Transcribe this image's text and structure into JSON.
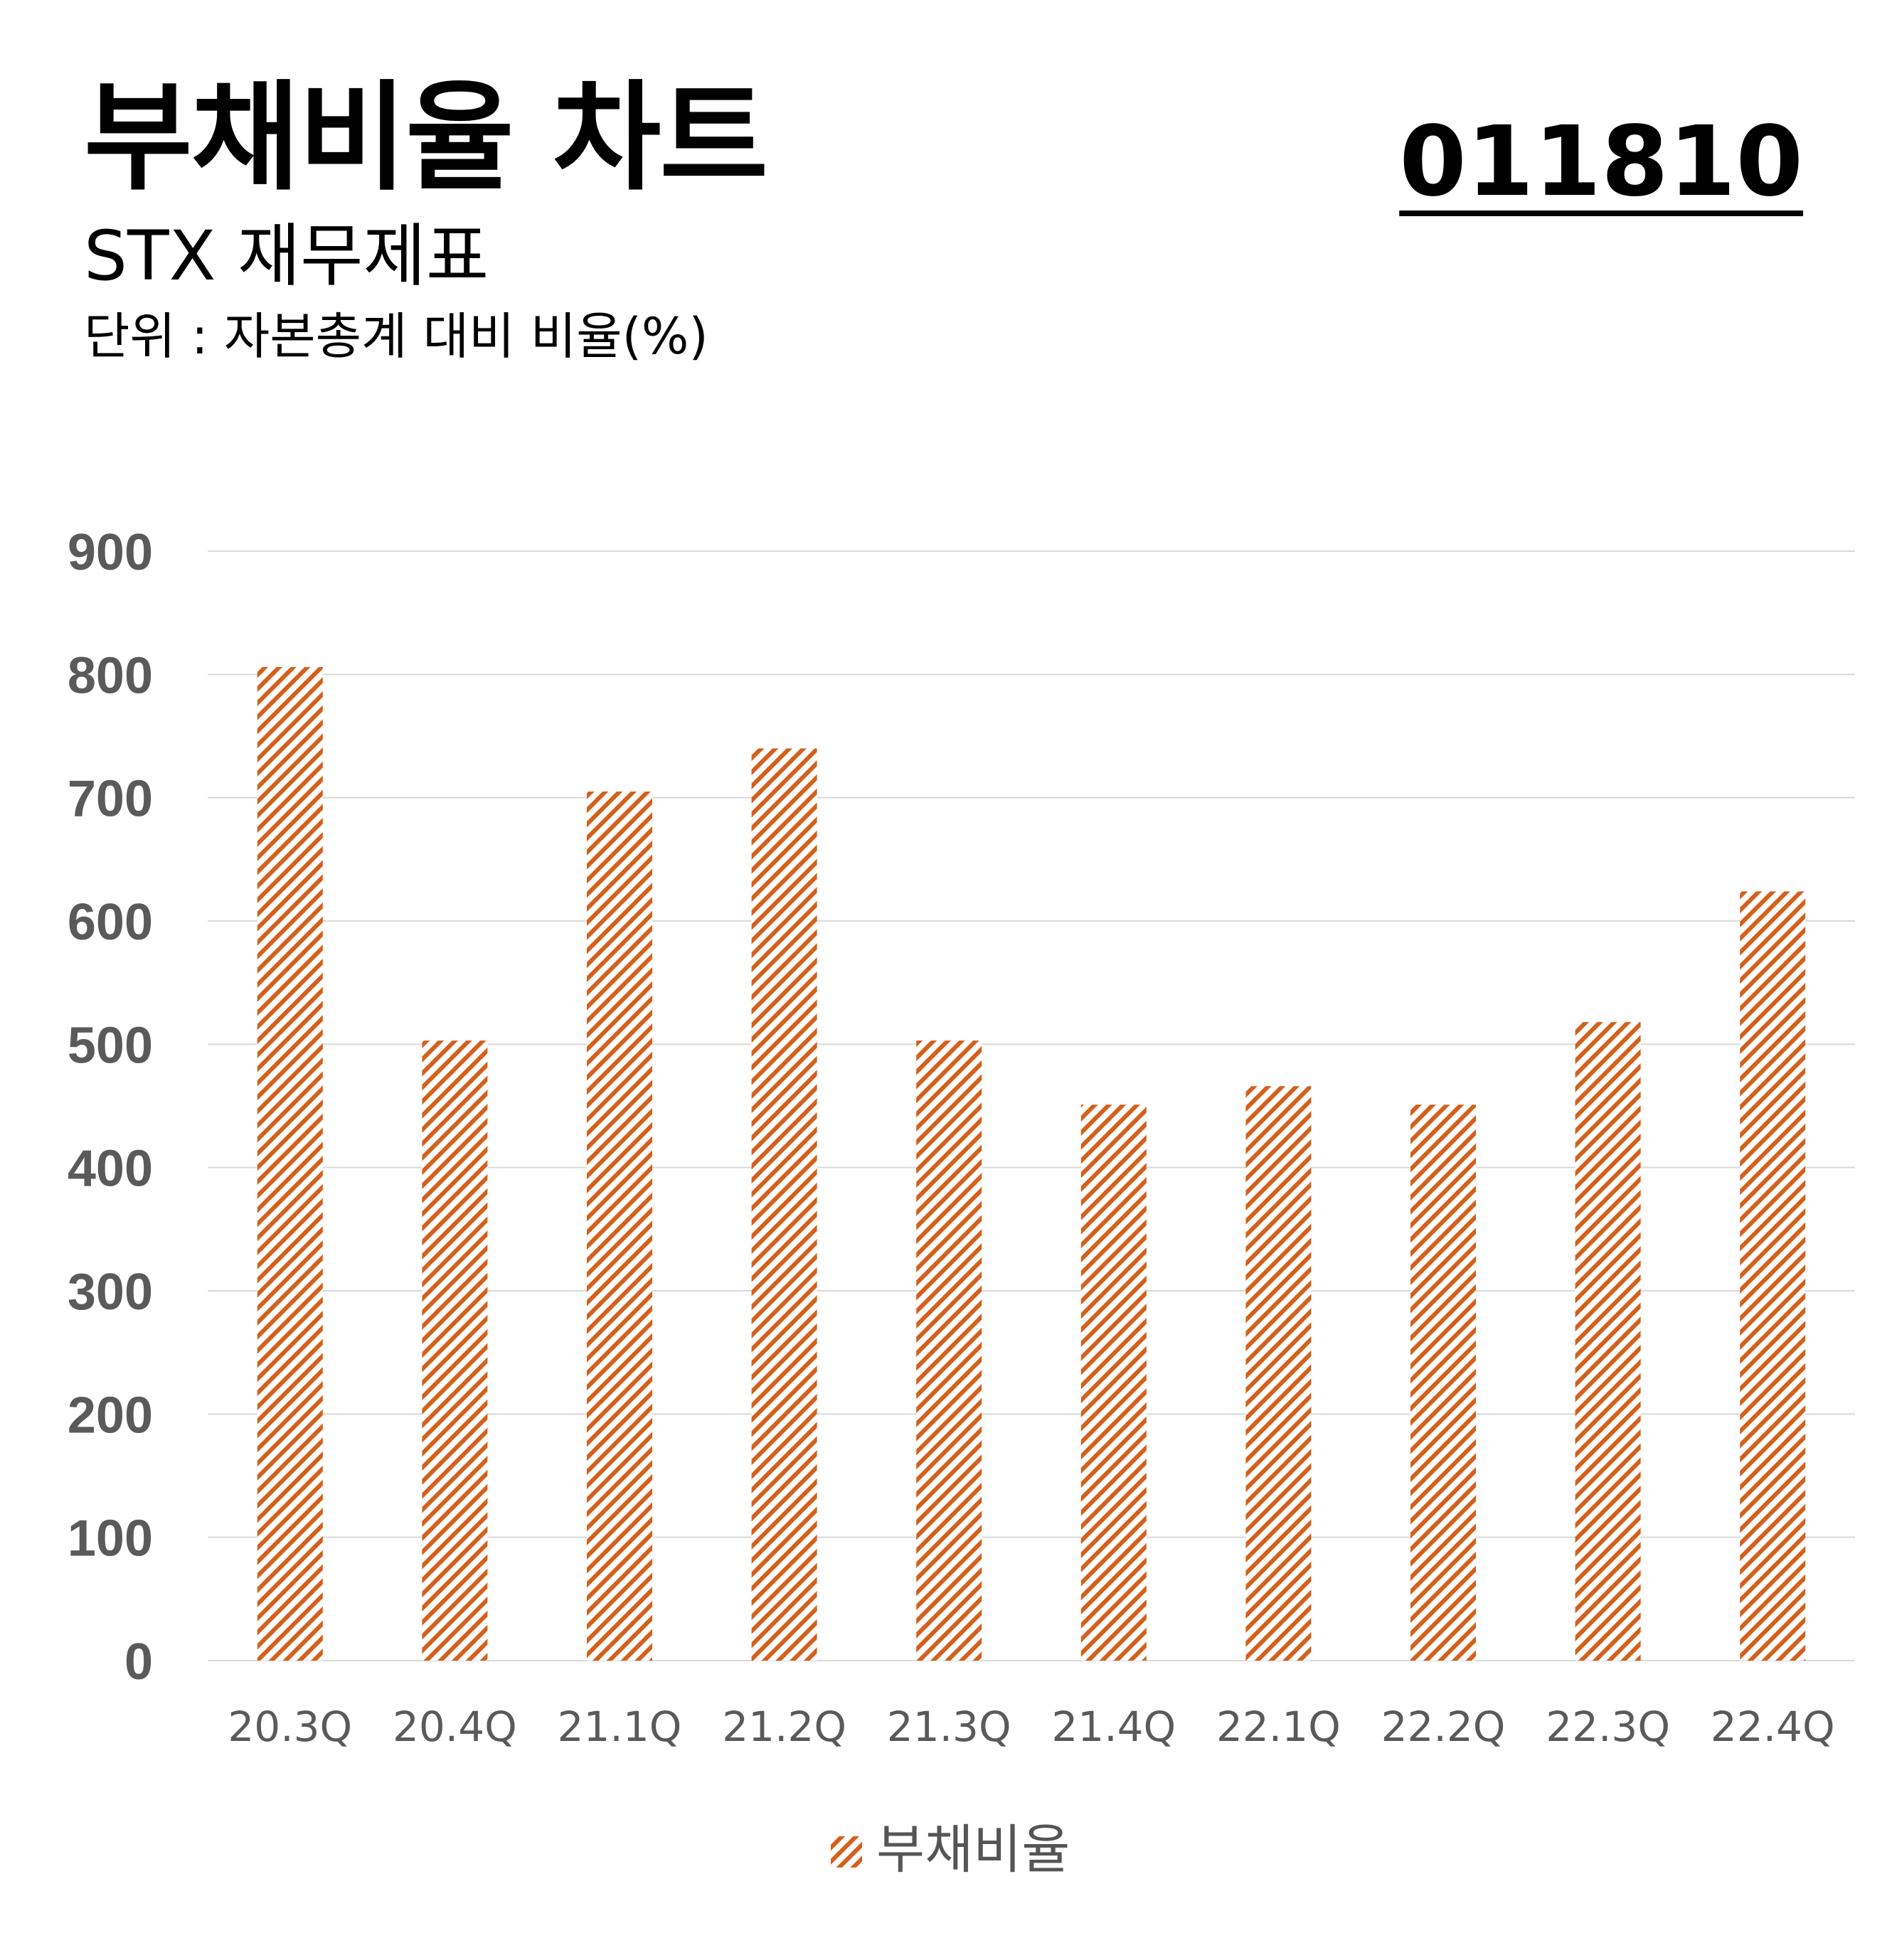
{
  "header": {
    "title": "부채비율 차트",
    "subtitle": "STX 재무제표",
    "unit": "단위 : 자본총계 대비 비율(%)",
    "code": "011810"
  },
  "colors": {
    "bar": "#d4601c",
    "grid": "#d9d9d9",
    "tick_text": "#5a5a5a"
  },
  "chart_data": {
    "type": "bar",
    "categories": [
      "20.3Q",
      "20.4Q",
      "21.1Q",
      "21.2Q",
      "21.3Q",
      "21.4Q",
      "22.1Q",
      "22.2Q",
      "22.3Q",
      "22.4Q"
    ],
    "series": [
      {
        "name": "부채비율",
        "values": [
          806,
          503,
          705,
          740,
          503,
          451,
          466,
          451,
          518,
          624
        ]
      }
    ],
    "ylim": [
      0,
      900
    ],
    "yticks": [
      0,
      100,
      200,
      300,
      400,
      500,
      600,
      700,
      800,
      900
    ],
    "grid": true,
    "legend": "bottom-center",
    "pattern": "diagonal-hatch"
  }
}
